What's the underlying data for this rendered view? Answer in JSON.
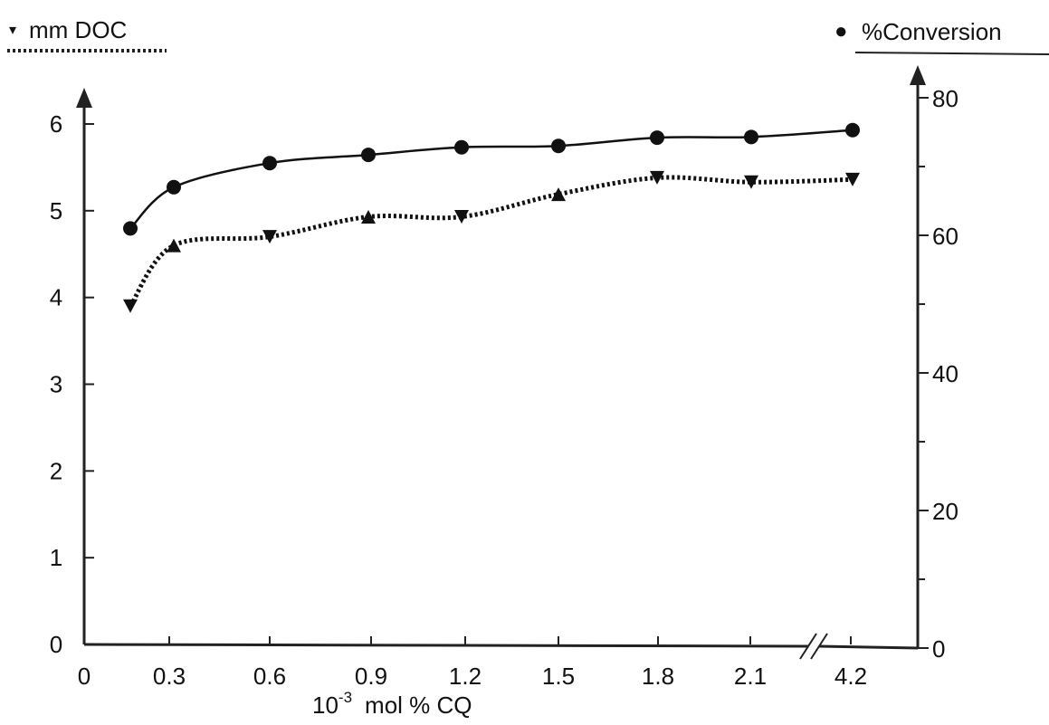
{
  "chart_data": {
    "type": "line",
    "categories": [
      "0",
      "0.3",
      "0.6",
      "0.9",
      "1.2",
      "1.5",
      "1.8",
      "2.1",
      "4.2"
    ],
    "x_values": [
      0.18,
      0.3,
      0.6,
      0.9,
      1.2,
      1.5,
      1.8,
      2.1,
      4.2
    ],
    "xlabel_base": "10",
    "xlabel_exponent": "-3",
    "xlabel_rest": "mol % CQ",
    "axis_break_between": [
      "2.1",
      "4.2"
    ],
    "y_left": {
      "label": "mm DOC",
      "marker_glyph": "▾",
      "ylim": [
        0,
        6
      ],
      "ticks": [
        "0",
        "1",
        "2",
        "3",
        "4",
        "5",
        "6"
      ]
    },
    "y_right": {
      "label": "%Conversion",
      "marker_glyph": "●",
      "ylim": [
        0,
        80
      ],
      "ticks": [
        "0",
        "20",
        "40",
        "60",
        "80"
      ]
    },
    "series": [
      {
        "name": "mm DOC",
        "axis": "left",
        "line_style": "dotted",
        "marker": "triangle",
        "x": [
          0.18,
          0.3,
          0.6,
          0.9,
          1.2,
          1.5,
          1.8,
          2.1,
          4.2
        ],
        "values": [
          3.9,
          4.6,
          4.7,
          4.93,
          4.93,
          5.19,
          5.38,
          5.33,
          5.36
        ],
        "marker_orientation": [
          "down",
          "up",
          "down",
          "up",
          "down",
          "up",
          "down",
          "down",
          "down"
        ]
      },
      {
        "name": "%Conversion",
        "axis": "right",
        "line_style": "solid",
        "marker": "circle",
        "x": [
          0.18,
          0.3,
          0.6,
          0.9,
          1.2,
          1.5,
          1.8,
          2.1,
          4.2
        ],
        "values": [
          61,
          67,
          70.5,
          71.7,
          72.8,
          73,
          74.2,
          74.3,
          75.3
        ]
      }
    ],
    "grid": false,
    "legend": "top"
  }
}
